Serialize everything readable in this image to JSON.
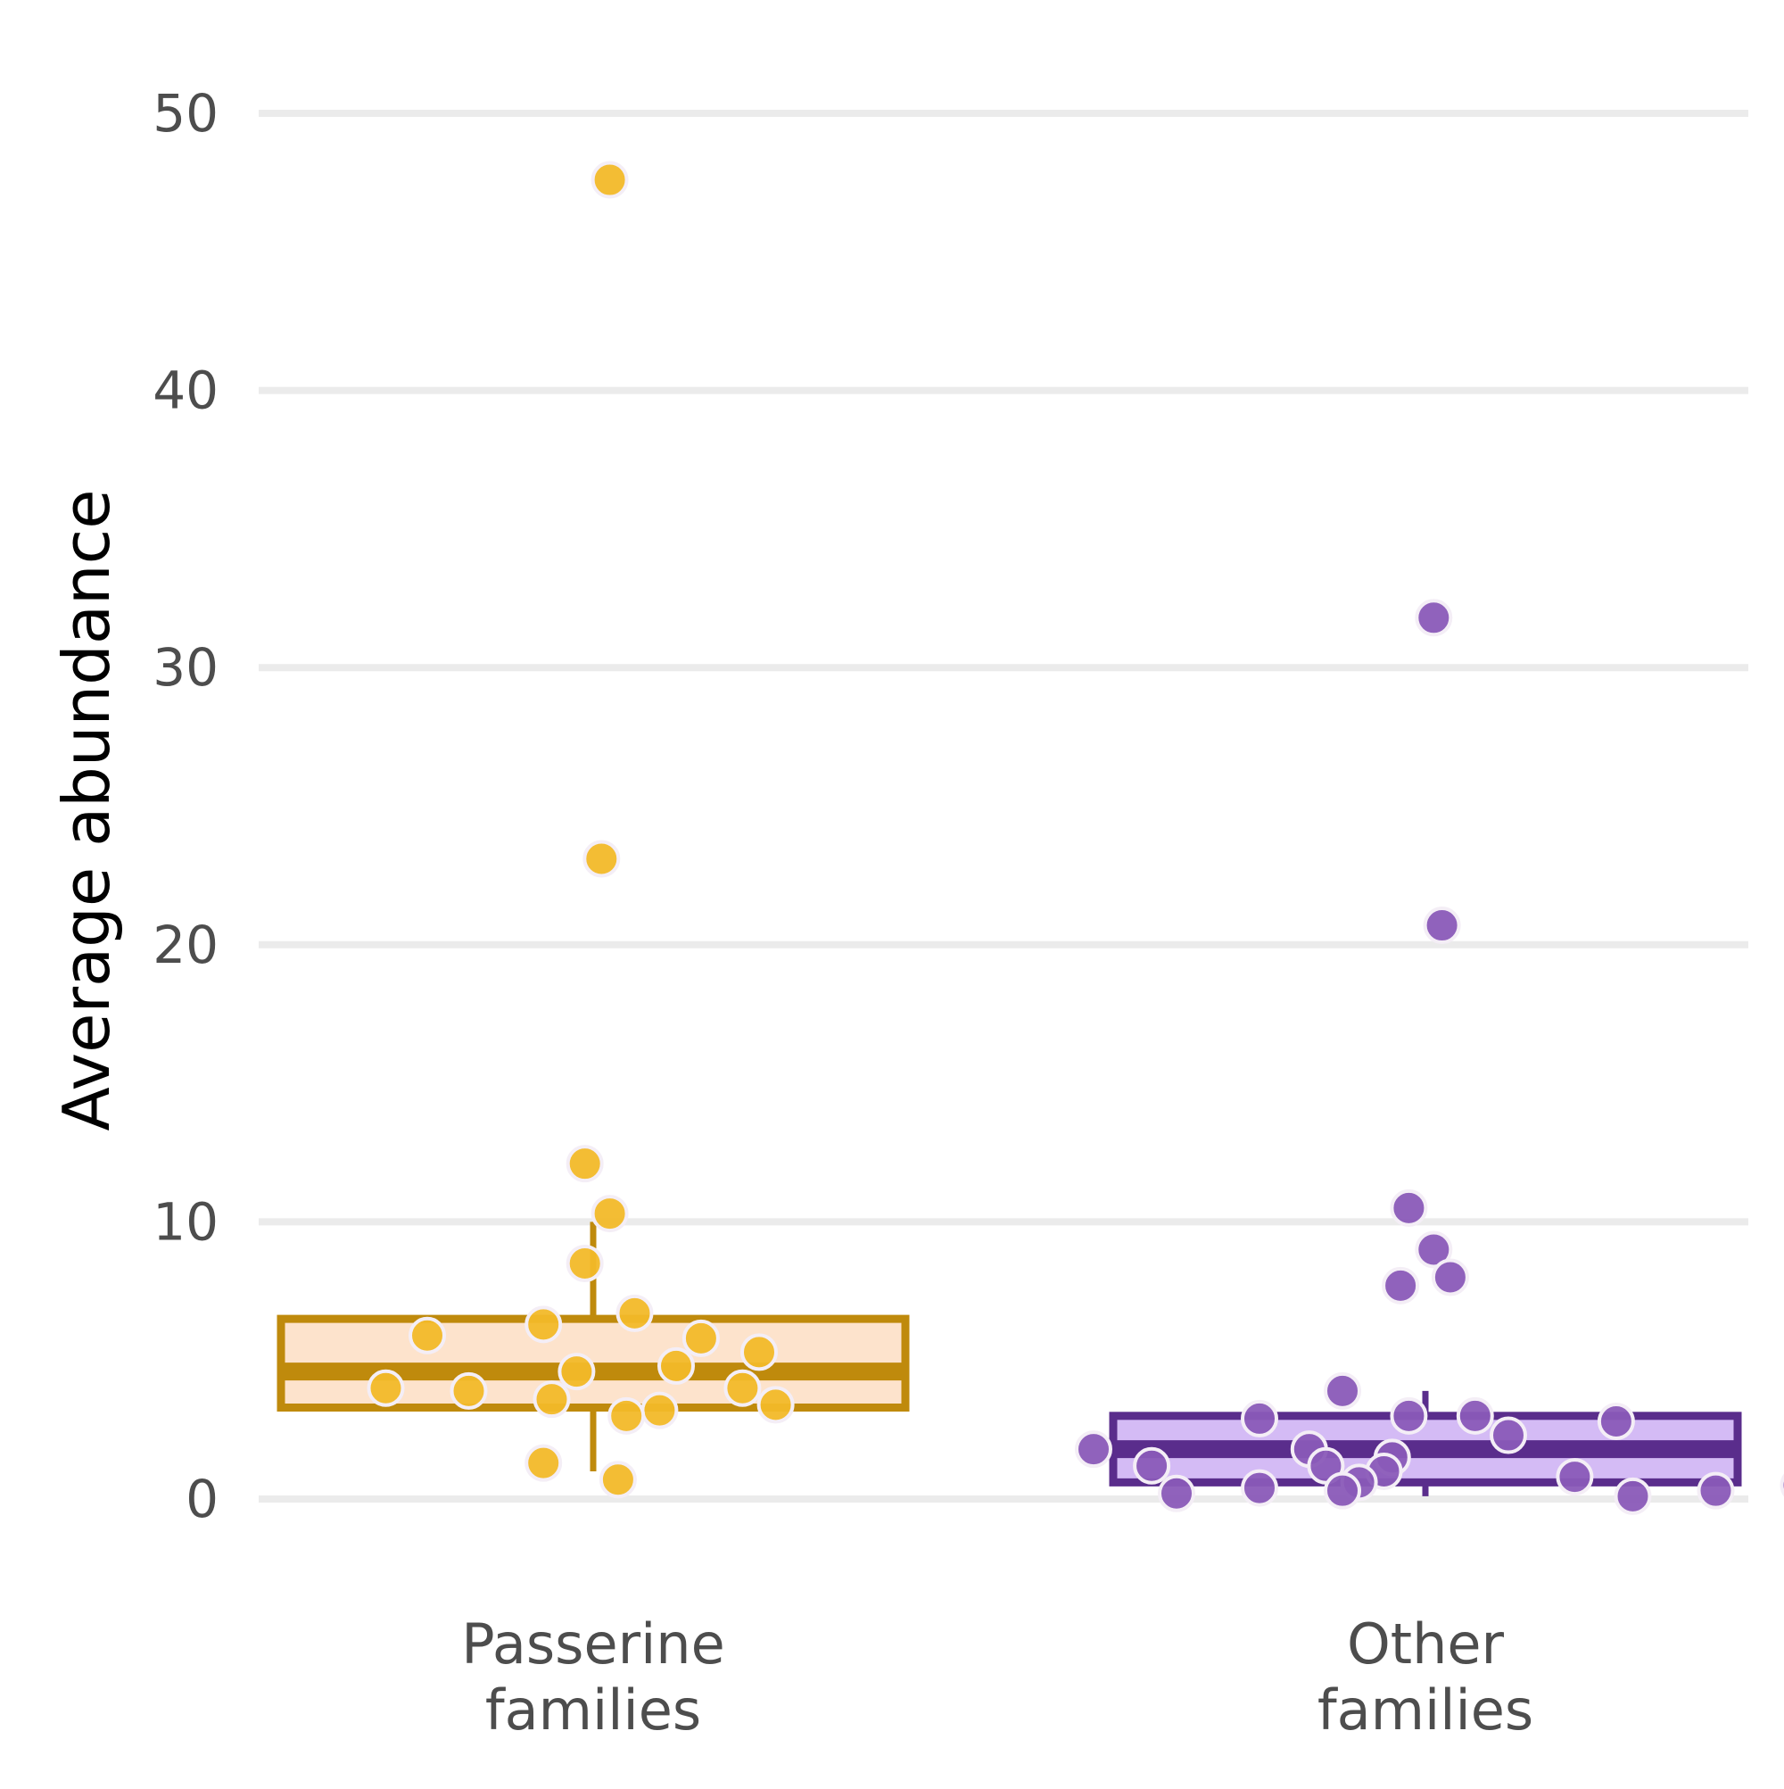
{
  "chart_data": {
    "type": "boxplot",
    "ylabel": "Average abundance",
    "ylim": [
      -2.5,
      54
    ],
    "yticks": [
      0,
      10,
      20,
      30,
      40,
      50
    ],
    "ytick_labels": [
      "0",
      "10",
      "20",
      "30",
      "40",
      "50"
    ],
    "grid": "horizontal",
    "legend": "none",
    "categories": [
      "Passerine families",
      "Other families"
    ],
    "category_lines": [
      [
        "Passerine",
        "families"
      ],
      [
        "Other",
        "families"
      ]
    ],
    "groups": [
      {
        "category": "Passerine families",
        "box": {
          "q1": 3.3,
          "median": 4.6,
          "q3": 6.5,
          "whisker_low": 1.0,
          "whisker_high": 10.0
        },
        "colors": {
          "box_fill": "#fde3cc",
          "box_line": "#bf8a0c",
          "points": "#f2b929"
        },
        "points": [
          {
            "y": 47.6,
            "j": 0.02
          },
          {
            "y": 23.1,
            "j": 0.01
          },
          {
            "y": 12.1,
            "j": -0.01
          },
          {
            "y": 10.3,
            "j": 0.02
          },
          {
            "y": 8.5,
            "j": -0.01
          },
          {
            "y": 6.7,
            "j": 0.05
          },
          {
            "y": 6.3,
            "j": -0.06
          },
          {
            "y": 5.9,
            "j": -0.2
          },
          {
            "y": 5.8,
            "j": 0.13
          },
          {
            "y": 5.3,
            "j": 0.2
          },
          {
            "y": 4.8,
            "j": 0.1
          },
          {
            "y": 4.6,
            "j": -0.02
          },
          {
            "y": 4.0,
            "j": -0.25
          },
          {
            "y": 4.0,
            "j": 0.18
          },
          {
            "y": 3.9,
            "j": -0.15
          },
          {
            "y": 3.6,
            "j": -0.05
          },
          {
            "y": 3.4,
            "j": 0.22
          },
          {
            "y": 3.2,
            "j": 0.08
          },
          {
            "y": 3.0,
            "j": 0.04
          },
          {
            "y": 1.3,
            "j": -0.06
          },
          {
            "y": 0.7,
            "j": 0.03
          }
        ]
      },
      {
        "category": "Other families",
        "box": {
          "q1": 0.6,
          "median": 1.8,
          "q3": 3.0,
          "whisker_low": 0.1,
          "whisker_high": 3.9
        },
        "colors": {
          "box_fill": "#d4bbf5",
          "box_line": "#5a2d8c",
          "points": "#8a5ab8"
        },
        "points": [
          {
            "y": 31.8,
            "j": 0.01
          },
          {
            "y": 20.7,
            "j": 0.02
          },
          {
            "y": 10.5,
            "j": -0.02
          },
          {
            "y": 9.0,
            "j": 0.01
          },
          {
            "y": 8.0,
            "j": 0.03
          },
          {
            "y": 7.7,
            "j": -0.03
          },
          {
            "y": 3.9,
            "j": -0.1
          },
          {
            "y": 3.0,
            "j": -0.02
          },
          {
            "y": 3.0,
            "j": 0.06
          },
          {
            "y": 2.9,
            "j": -0.2
          },
          {
            "y": 2.8,
            "j": 0.23
          },
          {
            "y": 2.3,
            "j": 0.1
          },
          {
            "y": 1.8,
            "j": -0.4
          },
          {
            "y": 1.8,
            "j": -0.14
          },
          {
            "y": 1.5,
            "j": -0.04
          },
          {
            "y": 1.2,
            "j": -0.33
          },
          {
            "y": 1.2,
            "j": -0.12
          },
          {
            "y": 1.0,
            "j": -0.05
          },
          {
            "y": 0.8,
            "j": 0.18
          },
          {
            "y": 0.6,
            "j": -0.08
          },
          {
            "y": 0.5,
            "j": 0.45
          },
          {
            "y": 0.4,
            "j": -0.2
          },
          {
            "y": 0.3,
            "j": 0.35
          },
          {
            "y": 0.3,
            "j": -0.1
          },
          {
            "y": 0.2,
            "j": -0.3
          },
          {
            "y": 0.1,
            "j": 0.25
          }
        ]
      }
    ]
  }
}
